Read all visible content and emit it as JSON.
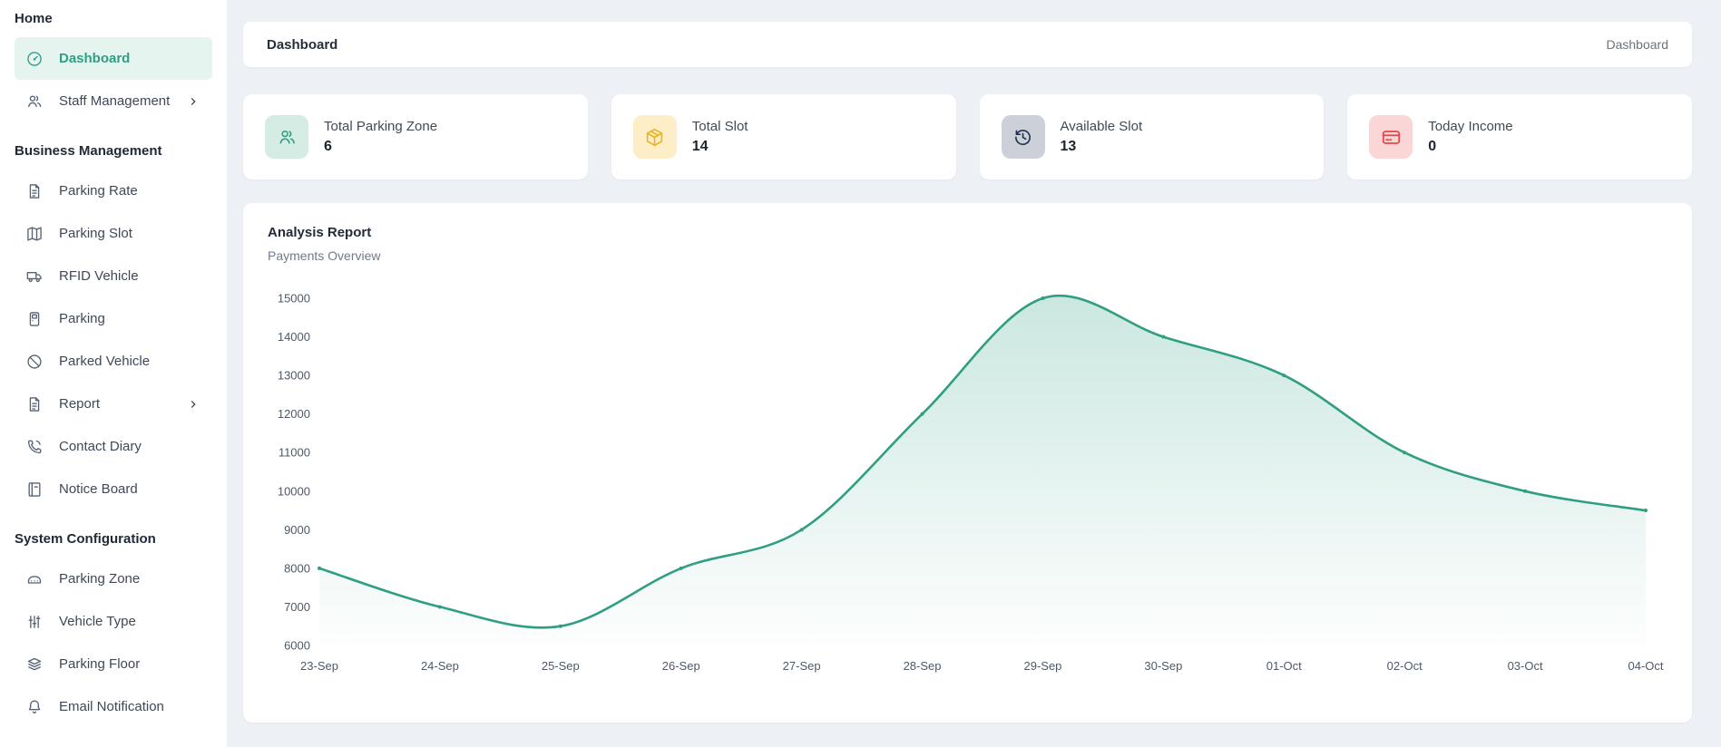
{
  "sidebar": {
    "sections": [
      {
        "label": "Home",
        "items": [
          {
            "label": "Dashboard",
            "icon": "gauge-icon",
            "active": true
          },
          {
            "label": "Staff Management",
            "icon": "users-icon",
            "chevron": "chevron-right-icon"
          }
        ]
      },
      {
        "label": "Business Management",
        "items": [
          {
            "label": "Parking Rate",
            "icon": "file-text-icon"
          },
          {
            "label": "Parking Slot",
            "icon": "map-icon"
          },
          {
            "label": "RFID Vehicle",
            "icon": "truck-icon"
          },
          {
            "label": "Parking",
            "icon": "parking-meter-icon"
          },
          {
            "label": "Parked Vehicle",
            "icon": "ban-icon"
          },
          {
            "label": "Report",
            "icon": "file-text-icon",
            "chevron": "chevron-right-icon"
          },
          {
            "label": "Contact Diary",
            "icon": "phone-icon"
          },
          {
            "label": "Notice Board",
            "icon": "notice-board-icon"
          }
        ]
      },
      {
        "label": "System Configuration",
        "items": [
          {
            "label": "Parking Zone",
            "icon": "car-icon"
          },
          {
            "label": "Vehicle Type",
            "icon": "sliders-icon"
          },
          {
            "label": "Parking Floor",
            "icon": "layers-icon"
          },
          {
            "label": "Email Notification",
            "icon": "bell-icon"
          }
        ]
      }
    ]
  },
  "header": {
    "title": "Dashboard",
    "breadcrumb": "Dashboard"
  },
  "stats": [
    {
      "label": "Total Parking Zone",
      "value": "6",
      "icon": "users-icon",
      "accent": "#2f9e83",
      "tile_bg": "#d4ece3"
    },
    {
      "label": "Total Slot",
      "value": "14",
      "icon": "package-icon",
      "accent": "#e9b422",
      "tile_bg": "#fdeec7"
    },
    {
      "label": "Available Slot",
      "value": "13",
      "icon": "history-icon",
      "accent": "#22304a",
      "tile_bg": "#ccd1d9"
    },
    {
      "label": "Today Income",
      "value": "0",
      "icon": "credit-card-icon",
      "accent": "#e4494d",
      "tile_bg": "#fbd6d6"
    }
  ],
  "chart_card": {
    "title": "Analysis Report",
    "subtitle": "Payments Overview"
  },
  "chart_data": {
    "type": "area",
    "title": "Payments Overview",
    "x": [
      "23-Sep",
      "24-Sep",
      "25-Sep",
      "26-Sep",
      "27-Sep",
      "28-Sep",
      "29-Sep",
      "30-Sep",
      "01-Oct",
      "02-Oct",
      "03-Oct",
      "04-Oct"
    ],
    "series": [
      {
        "name": "Payments",
        "values": [
          8000,
          7000,
          6500,
          8000,
          9000,
          12000,
          15000,
          14000,
          13000,
          11000,
          10000,
          9500
        ]
      }
    ],
    "ylim": [
      6000,
      15000
    ],
    "yticks": [
      15000,
      14000,
      13000,
      12000,
      11000,
      10000,
      9000,
      8000,
      7000,
      6000
    ],
    "grid": false,
    "legend": "none",
    "line_color": "#2f9e83",
    "fill_top_opacity": 0.25,
    "axis_label_color": "#4e5866"
  }
}
